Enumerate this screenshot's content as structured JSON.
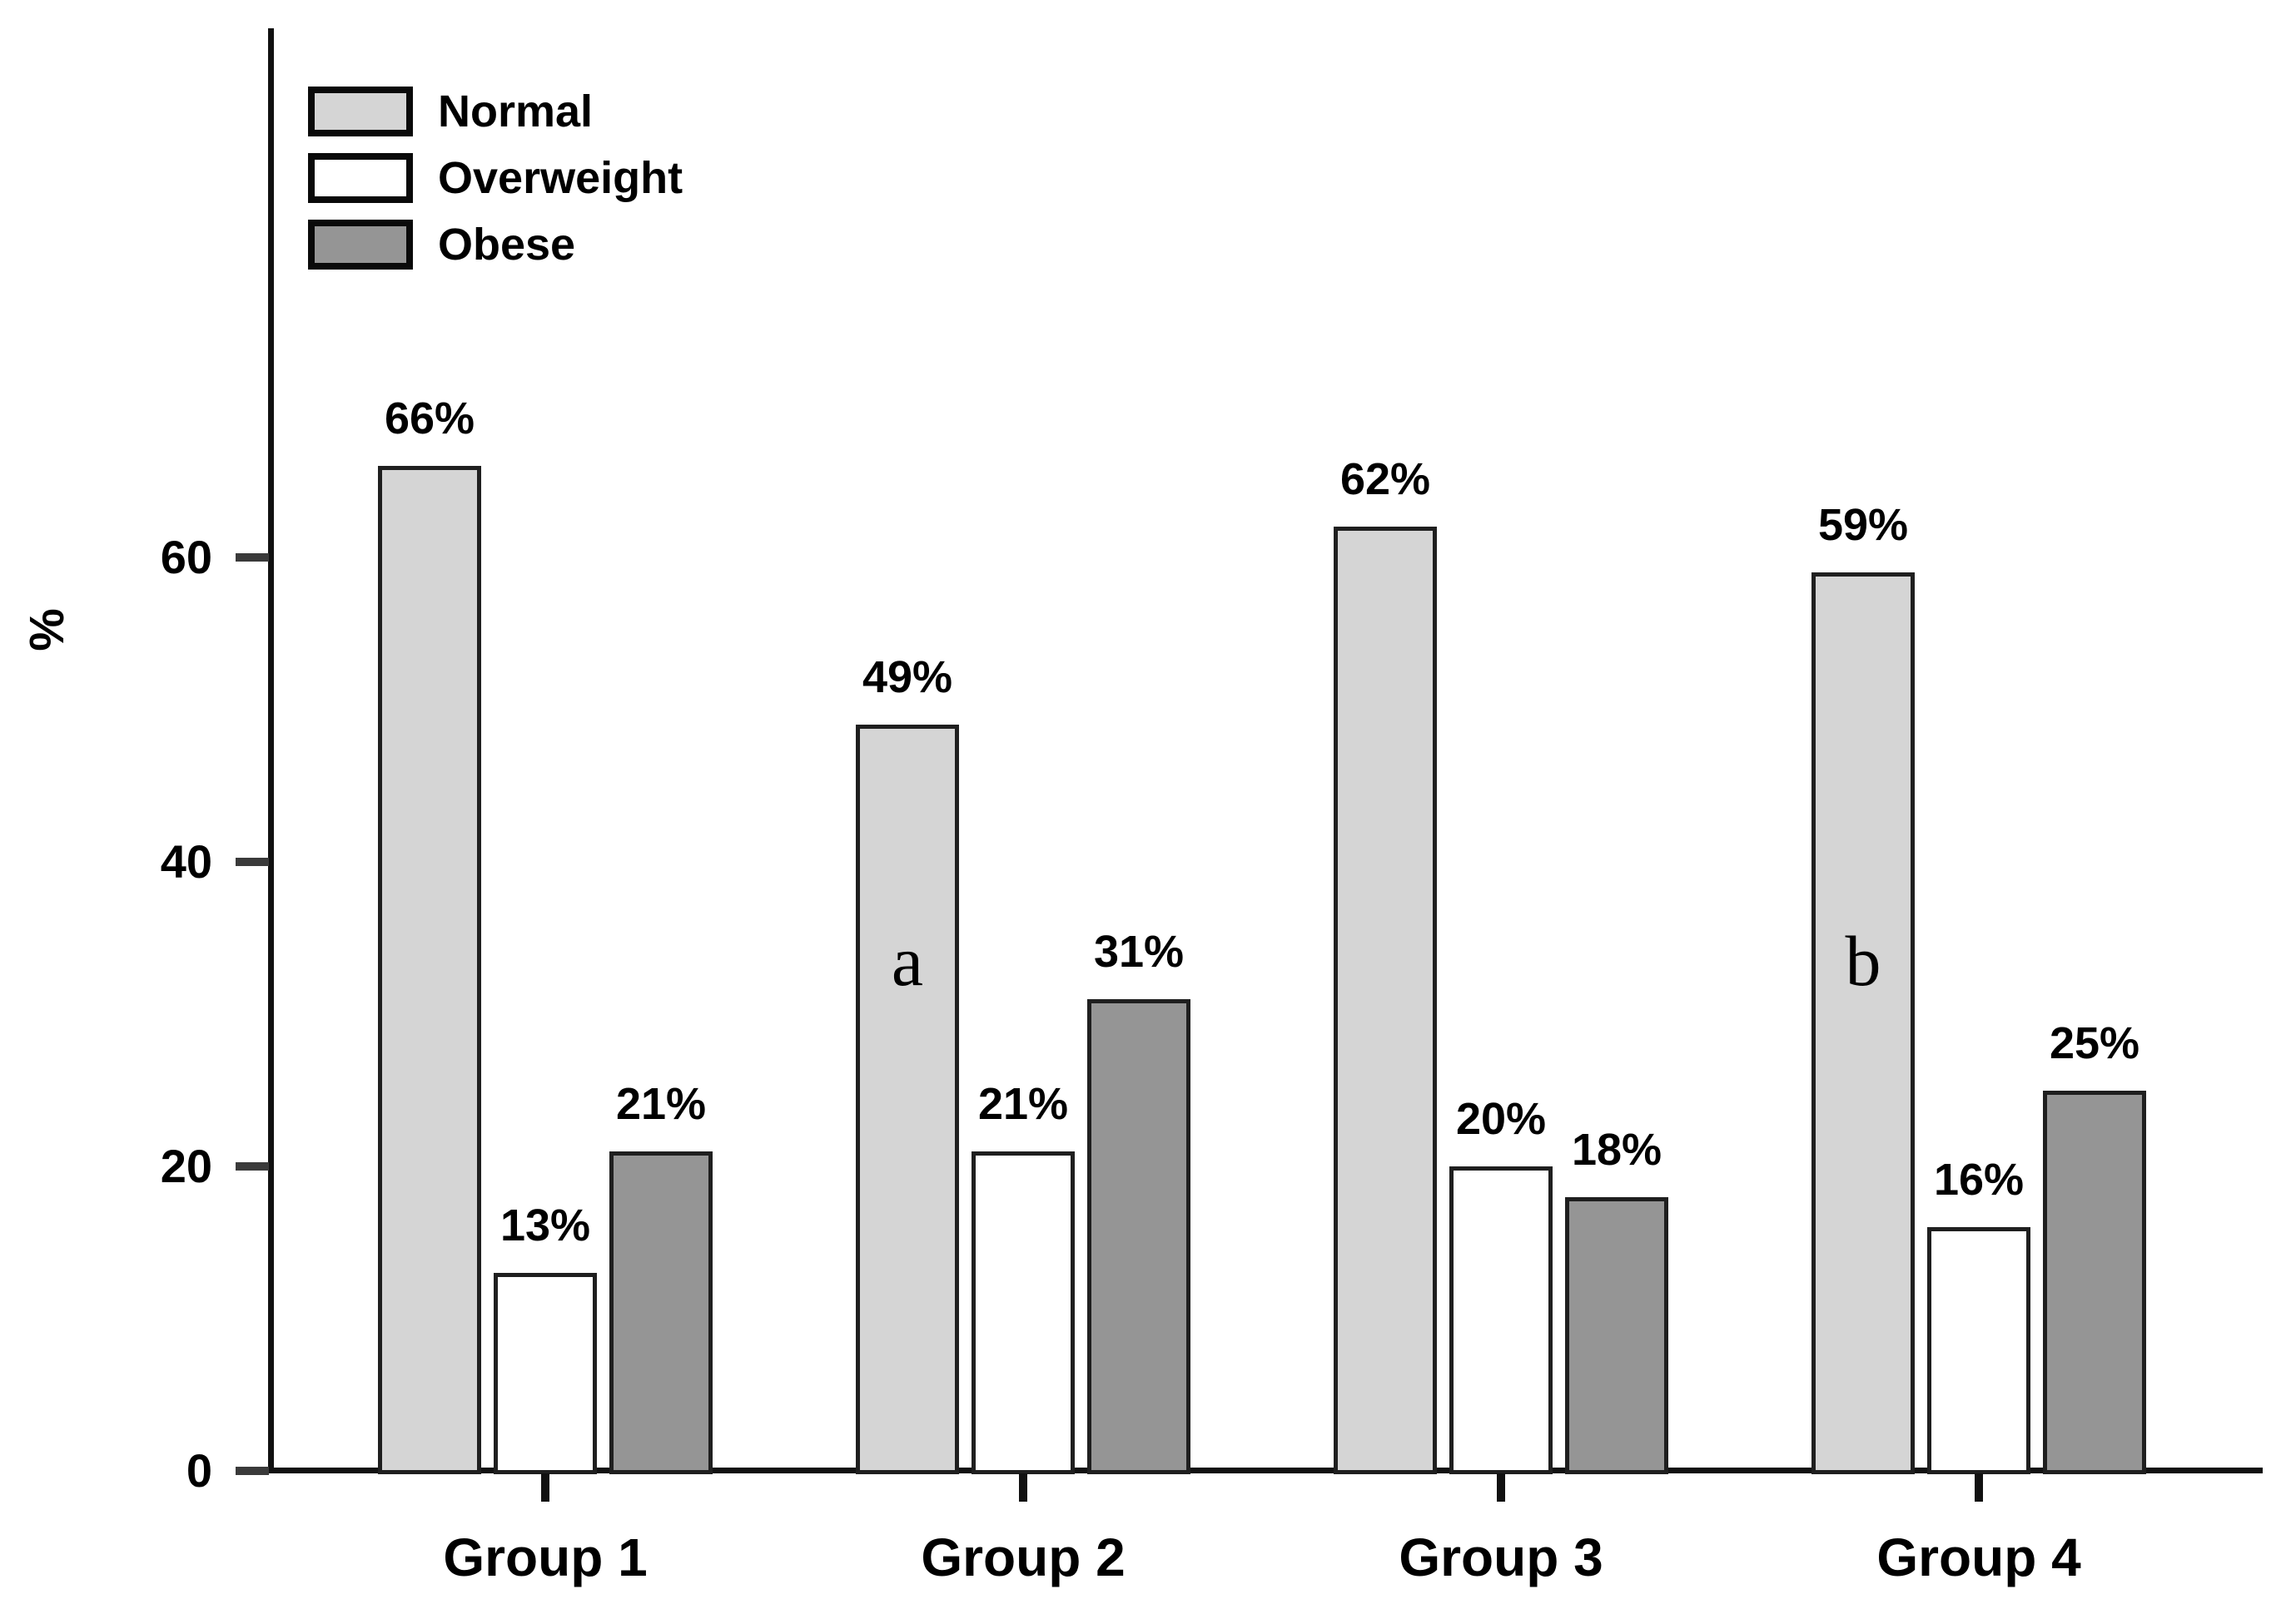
{
  "figure": {
    "background": "#ffffff"
  },
  "chart_data": {
    "type": "bar",
    "title": "",
    "xlabel": "",
    "ylabel": "%",
    "categories": [
      "Group 1",
      "Group 2",
      "Group 3",
      "Group 4"
    ],
    "series": [
      {
        "name": "Normal",
        "color": "#d5d5d5",
        "values": [
          66,
          49,
          62,
          59
        ],
        "value_labels": [
          "66%",
          "49%",
          "62%",
          "59%"
        ]
      },
      {
        "name": "Overweight",
        "color": "#ffffff",
        "values": [
          13,
          21,
          20,
          16
        ],
        "value_labels": [
          "13%",
          "21%",
          "20%",
          "16%"
        ]
      },
      {
        "name": "Obese",
        "color": "#959595",
        "values": [
          21,
          31,
          18,
          25
        ],
        "value_labels": [
          "21%",
          "31%",
          "18%",
          "25%"
        ]
      }
    ],
    "y_ticks": [
      {
        "value": 0,
        "label": "0"
      },
      {
        "value": 20,
        "label": "20"
      },
      {
        "value": 40,
        "label": "40"
      },
      {
        "value": 60,
        "label": "60"
      }
    ],
    "axis_max": 94.5,
    "ylim": [
      0,
      94.5
    ],
    "grid": false,
    "legend_position": "top-left",
    "annotations": [
      {
        "text": "a",
        "category_index": 1,
        "series_index": 0
      },
      {
        "text": "b",
        "category_index": 3,
        "series_index": 0
      }
    ],
    "colors": {
      "axis": "#111111",
      "tick": "#3a3a3a",
      "text": "#000000",
      "bar_border": "#1f1f1f"
    }
  }
}
